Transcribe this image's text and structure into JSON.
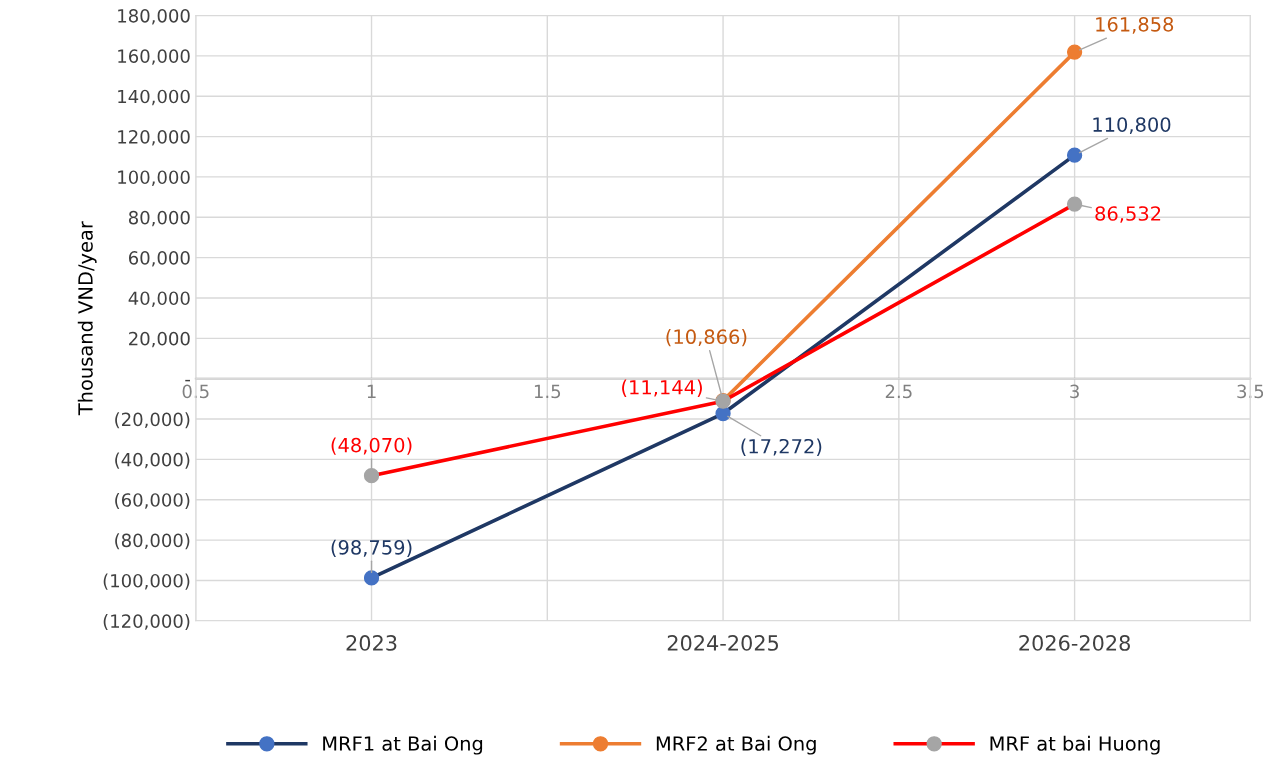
{
  "chart_data": {
    "type": "line",
    "ylabel": "Thousand VND/year",
    "categories": [
      "2023",
      "2024-2025",
      "2026-2028"
    ],
    "x2lim": [
      0.5,
      3.5
    ],
    "x2ticks": [
      0.5,
      1,
      1.5,
      {
        "value": 2,
        "label": null
      },
      2.5,
      3,
      3.5
    ],
    "ylim": [
      -120000,
      180000
    ],
    "yticks": [
      {
        "value": -120000,
        "label": "(120,000)"
      },
      {
        "value": -100000,
        "label": "(100,000)"
      },
      {
        "value": -80000,
        "label": "(80,000)"
      },
      {
        "value": -60000,
        "label": "(60,000)"
      },
      {
        "value": -40000,
        "label": "(40,000)"
      },
      {
        "value": -20000,
        "label": "(20,000)"
      },
      {
        "value": 0,
        "label": "-"
      },
      {
        "value": 20000,
        "label": "20,000"
      },
      {
        "value": 40000,
        "label": "40,000"
      },
      {
        "value": 60000,
        "label": "60,000"
      },
      {
        "value": 80000,
        "label": "80,000"
      },
      {
        "value": 100000,
        "label": "100,000"
      },
      {
        "value": 120000,
        "label": "120,000"
      },
      {
        "value": 140000,
        "label": "140,000"
      },
      {
        "value": 160000,
        "label": "160,000"
      },
      {
        "value": 180000,
        "label": "180,000"
      }
    ],
    "series": [
      {
        "name": "MRF1 at Bai Ong",
        "color": "#1f3864",
        "colors": [
          "#4472c4",
          "#4472c4",
          "#4472c4"
        ],
        "values": [
          -98759,
          -17272,
          110800
        ],
        "value_labels": [
          "(98,759)",
          "(17,272)",
          "110,800"
        ]
      },
      {
        "name": "MRF2 at Bai Ong",
        "color": "#ed7d31",
        "colors": [
          null,
          "#ed7d31",
          "#ed7d31"
        ],
        "values": [
          null,
          -10866,
          161858
        ],
        "value_labels": [
          null,
          "(10,866)",
          "161,858"
        ]
      },
      {
        "name": "MRF at bai Huong",
        "color": "#ff0000",
        "colors": [
          "#a5a5a5",
          "#a5a5a5",
          "#a5a5a5"
        ],
        "values": [
          -48070,
          -11144,
          86532
        ],
        "value_labels": [
          "(48,070)",
          "(11,144)",
          "86,532"
        ]
      }
    ],
    "marker": "circle",
    "line_style": "solid",
    "grid": true,
    "legend": "bottom"
  }
}
